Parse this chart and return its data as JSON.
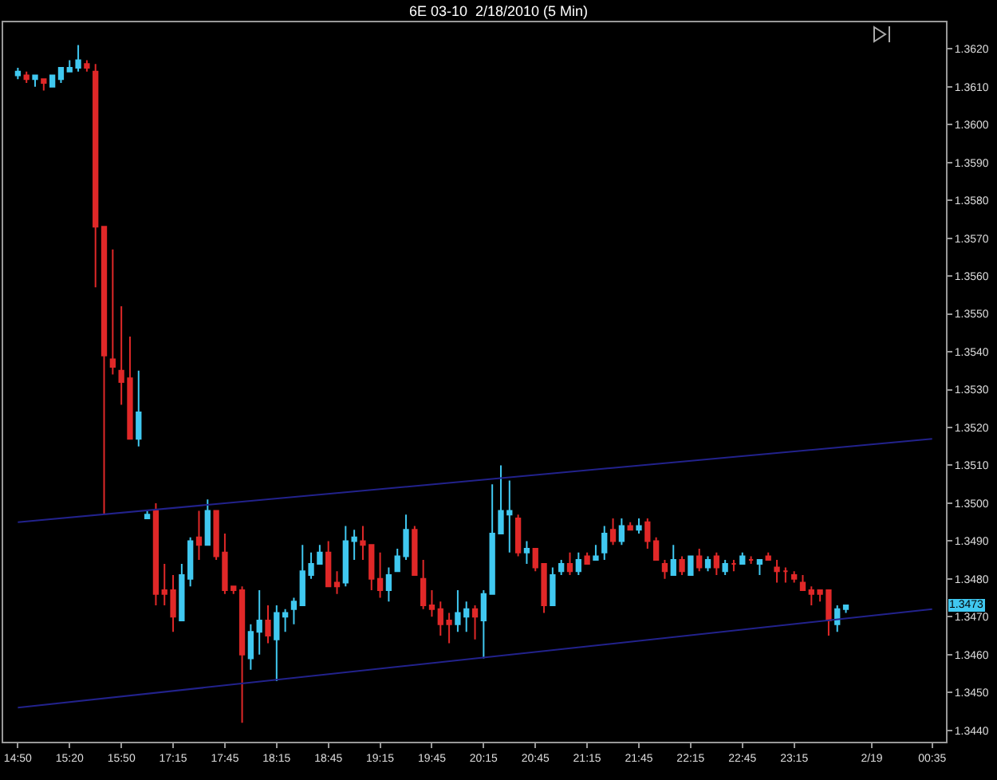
{
  "chart_data": {
    "type": "candlestick",
    "title": "6E 03-10  2/18/2010 (5 Min)",
    "categories": [
      "14:50",
      null,
      null,
      null,
      null,
      null,
      "15:20",
      null,
      null,
      null,
      null,
      null,
      "15:50",
      null,
      null,
      null,
      null,
      null,
      "17:15",
      null,
      null,
      null,
      null,
      null,
      "17:45",
      null,
      null,
      null,
      null,
      null,
      "18:15",
      null,
      null,
      null,
      null,
      null,
      "18:45",
      null,
      null,
      null,
      null,
      null,
      "19:15",
      null,
      null,
      null,
      null,
      null,
      "19:45",
      null,
      null,
      null,
      null,
      null,
      "20:15",
      null,
      null,
      null,
      null,
      null,
      "20:45",
      null,
      null,
      null,
      null,
      null,
      "21:15",
      null,
      null,
      null,
      null,
      null,
      "21:45",
      null,
      null,
      null,
      null,
      null,
      "22:15",
      null,
      null,
      null,
      null,
      null,
      "22:45",
      null,
      null,
      null,
      null,
      null,
      "23:15",
      null,
      null,
      null,
      null,
      null,
      null,
      null,
      null,
      "2/19",
      null,
      null,
      null,
      null,
      null,
      null,
      "00:35"
    ],
    "ohlc": [
      [
        1.3613,
        1.3615,
        1.3612,
        1.3614
      ],
      [
        1.3613,
        1.3614,
        1.3611,
        1.3612
      ],
      [
        1.3612,
        1.3613,
        1.361,
        1.3613
      ],
      [
        1.3612,
        1.3612,
        1.3609,
        1.3611
      ],
      [
        1.361,
        1.3613,
        1.361,
        1.3613
      ],
      [
        1.3612,
        1.3615,
        1.3611,
        1.3615
      ],
      [
        1.3614,
        1.3617,
        1.3614,
        1.3615
      ],
      [
        1.3615,
        1.3621,
        1.3614,
        1.3617
      ],
      [
        1.3616,
        1.3617,
        1.3614,
        1.3615
      ],
      [
        1.3614,
        1.3616,
        1.3557,
        1.3573
      ],
      [
        1.3573,
        1.3573,
        1.3497,
        1.3539
      ],
      [
        1.3538,
        1.3567,
        1.3534,
        1.3536
      ],
      [
        1.3535,
        1.3552,
        1.3526,
        1.3532
      ],
      [
        1.3533,
        1.3544,
        1.3517,
        1.3517
      ],
      [
        1.3517,
        1.3535,
        1.3515,
        1.3524
      ],
      [
        1.3496,
        1.3498,
        1.3496,
        1.3497
      ],
      [
        1.3498,
        1.35,
        1.3473,
        1.3476
      ],
      [
        1.3477,
        1.3484,
        1.3473,
        1.3476
      ],
      [
        1.3477,
        1.3481,
        1.3466,
        1.347
      ],
      [
        1.3469,
        1.3484,
        1.3469,
        1.3481
      ],
      [
        1.348,
        1.3491,
        1.3478,
        1.349
      ],
      [
        1.3491,
        1.3498,
        1.3485,
        1.3489
      ],
      [
        1.3489,
        1.3501,
        1.3489,
        1.3498
      ],
      [
        1.3498,
        1.3498,
        1.3485,
        1.3486
      ],
      [
        1.3487,
        1.3492,
        1.3476,
        1.3477
      ],
      [
        1.3478,
        1.3478,
        1.3476,
        1.3477
      ],
      [
        1.3477,
        1.3478,
        1.3442,
        1.346
      ],
      [
        1.3459,
        1.3468,
        1.3456,
        1.3466
      ],
      [
        1.3466,
        1.3477,
        1.346,
        1.3469
      ],
      [
        1.3469,
        1.3473,
        1.3463,
        1.3465
      ],
      [
        1.3464,
        1.3473,
        1.3453,
        1.3471
      ],
      [
        1.347,
        1.3472,
        1.3466,
        1.3471
      ],
      [
        1.3472,
        1.3475,
        1.3468,
        1.3474
      ],
      [
        1.3473,
        1.3489,
        1.3473,
        1.3482
      ],
      [
        1.3481,
        1.3487,
        1.348,
        1.3484
      ],
      [
        1.3484,
        1.3489,
        1.3484,
        1.3487
      ],
      [
        1.3487,
        1.349,
        1.3478,
        1.3478
      ],
      [
        1.3479,
        1.3482,
        1.3476,
        1.3478
      ],
      [
        1.3479,
        1.3494,
        1.3478,
        1.349
      ],
      [
        1.349,
        1.3493,
        1.3485,
        1.3491
      ],
      [
        1.349,
        1.3494,
        1.3485,
        1.3489
      ],
      [
        1.3489,
        1.3489,
        1.3477,
        1.348
      ],
      [
        1.348,
        1.3487,
        1.3475,
        1.3477
      ],
      [
        1.3477,
        1.3483,
        1.3474,
        1.3481
      ],
      [
        1.3482,
        1.3488,
        1.3482,
        1.3486
      ],
      [
        1.3486,
        1.3497,
        1.3485,
        1.3493
      ],
      [
        1.3493,
        1.3494,
        1.3481,
        1.3481
      ],
      [
        1.348,
        1.3485,
        1.3472,
        1.3473
      ],
      [
        1.3473,
        1.3477,
        1.347,
        1.3472
      ],
      [
        1.3472,
        1.3474,
        1.3465,
        1.3468
      ],
      [
        1.3469,
        1.3471,
        1.3463,
        1.3468
      ],
      [
        1.3468,
        1.3477,
        1.3466,
        1.3471
      ],
      [
        1.347,
        1.3474,
        1.3466,
        1.3472
      ],
      [
        1.3472,
        1.3473,
        1.3464,
        1.347
      ],
      [
        1.3469,
        1.3477,
        1.3459,
        1.3476
      ],
      [
        1.3476,
        1.3505,
        1.3476,
        1.3492
      ],
      [
        1.3492,
        1.351,
        1.3492,
        1.3498
      ],
      [
        1.3497,
        1.3506,
        1.3487,
        1.3498
      ],
      [
        1.3496,
        1.3497,
        1.3486,
        1.3487
      ],
      [
        1.3487,
        1.349,
        1.3484,
        1.3488
      ],
      [
        1.3488,
        1.3488,
        1.3482,
        1.3483
      ],
      [
        1.3484,
        1.3484,
        1.3471,
        1.3473
      ],
      [
        1.3473,
        1.3483,
        1.3473,
        1.3481
      ],
      [
        1.3482,
        1.3485,
        1.3481,
        1.3484
      ],
      [
        1.3484,
        1.3487,
        1.3481,
        1.3482
      ],
      [
        1.3482,
        1.3487,
        1.3481,
        1.3485
      ],
      [
        1.3486,
        1.3487,
        1.3484,
        1.3484
      ],
      [
        1.3485,
        1.3489,
        1.3485,
        1.3486
      ],
      [
        1.3487,
        1.3494,
        1.3485,
        1.3492
      ],
      [
        1.3493,
        1.3496,
        1.3489,
        1.349
      ],
      [
        1.349,
        1.3496,
        1.3489,
        1.3494
      ],
      [
        1.3494,
        1.3495,
        1.3493,
        1.3493
      ],
      [
        1.3493,
        1.3496,
        1.3492,
        1.3494
      ],
      [
        1.3495,
        1.3496,
        1.3488,
        1.349
      ],
      [
        1.349,
        1.3491,
        1.3485,
        1.3485
      ],
      [
        1.3484,
        1.3485,
        1.348,
        1.3482
      ],
      [
        1.3481,
        1.3489,
        1.3481,
        1.3485
      ],
      [
        1.3485,
        1.3486,
        1.3481,
        1.3482
      ],
      [
        1.3481,
        1.3486,
        1.3481,
        1.3486
      ],
      [
        1.3486,
        1.3488,
        1.3482,
        1.3483
      ],
      [
        1.3483,
        1.3486,
        1.3482,
        1.3485
      ],
      [
        1.3486,
        1.3487,
        1.3481,
        1.3483
      ],
      [
        1.3482,
        1.3485,
        1.3481,
        1.3484
      ],
      [
        1.3484,
        1.3485,
        1.3482,
        1.3484
      ],
      [
        1.3484,
        1.3487,
        1.3484,
        1.3486
      ],
      [
        1.3485,
        1.3486,
        1.3484,
        1.3485
      ],
      [
        1.3484,
        1.3485,
        1.3481,
        1.3485
      ],
      [
        1.3486,
        1.3487,
        1.3485,
        1.3485
      ],
      [
        1.3483,
        1.3485,
        1.3479,
        1.3482
      ],
      [
        1.3482,
        1.3483,
        1.3479,
        1.3482
      ],
      [
        1.3481,
        1.3482,
        1.3479,
        1.348
      ],
      [
        1.3479,
        1.3481,
        1.3477,
        1.3477
      ],
      [
        1.3477,
        1.3478,
        1.3473,
        1.3476
      ],
      [
        1.3477,
        1.3477,
        1.3474,
        1.3476
      ],
      [
        1.3477,
        1.3477,
        1.3465,
        1.3469
      ],
      [
        1.3468,
        1.3473,
        1.3466,
        1.3472
      ],
      [
        1.3472,
        1.3473,
        1.3471,
        1.3473
      ],
      null,
      null,
      null,
      null,
      null,
      null,
      null,
      null,
      null,
      null
    ],
    "colors": [
      "#40c8f0",
      "#e02828",
      "#40c8f0",
      "#e02828",
      "#40c8f0",
      "#40c8f0",
      "#40c8f0",
      "#40c8f0",
      "#e02828",
      "#e02828",
      "#e02828",
      "#e02828",
      "#e02828",
      "#e02828",
      "#40c8f0",
      "#40c8f0",
      "#e02828",
      "#e02828",
      "#e02828",
      "#40c8f0",
      "#40c8f0",
      "#e02828",
      "#40c8f0",
      "#e02828",
      "#e02828",
      "#e02828",
      "#e02828",
      "#40c8f0",
      "#40c8f0",
      "#e02828",
      "#40c8f0",
      "#40c8f0",
      "#40c8f0",
      "#40c8f0",
      "#40c8f0",
      "#40c8f0",
      "#e02828",
      "#e02828",
      "#40c8f0",
      "#40c8f0",
      "#e02828",
      "#e02828",
      "#e02828",
      "#40c8f0",
      "#40c8f0",
      "#40c8f0",
      "#e02828",
      "#e02828",
      "#e02828",
      "#e02828",
      "#e02828",
      "#40c8f0",
      "#40c8f0",
      "#e02828",
      "#40c8f0",
      "#40c8f0",
      "#40c8f0",
      "#40c8f0",
      "#e02828",
      "#40c8f0",
      "#e02828",
      "#e02828",
      "#40c8f0",
      "#40c8f0",
      "#e02828",
      "#40c8f0",
      "#e02828",
      "#40c8f0",
      "#40c8f0",
      "#e02828",
      "#40c8f0",
      "#e02828",
      "#40c8f0",
      "#e02828",
      "#e02828",
      "#e02828",
      "#40c8f0",
      "#e02828",
      "#40c8f0",
      "#e02828",
      "#40c8f0",
      "#e02828",
      "#40c8f0",
      "#e02828",
      "#40c8f0",
      "#e02828",
      "#40c8f0",
      "#e02828",
      "#e02828",
      "#e02828",
      "#e02828",
      "#e02828",
      "#e02828",
      "#e02828",
      "#e02828",
      "#40c8f0",
      "#40c8f0",
      null,
      null,
      null,
      null,
      null,
      null,
      null,
      null,
      null,
      null
    ],
    "series": [
      {
        "type": "line",
        "x": [
          "14:50",
          "00:35"
        ],
        "values": [
          1.3495,
          1.3517
        ],
        "color": "#22228c"
      },
      {
        "type": "line",
        "x": [
          "14:50",
          "00:35"
        ],
        "values": [
          1.3446,
          1.3472
        ],
        "color": "#22228c"
      }
    ],
    "ylim": [
      1.3437,
      1.3627
    ],
    "yticks": [
      {
        "value": 1.344,
        "label": "1.3440"
      },
      {
        "value": 1.345,
        "label": "1.3450"
      },
      {
        "value": 1.346,
        "label": "1.3460"
      },
      {
        "value": 1.347,
        "label": "1.3470"
      },
      {
        "value": 1.348,
        "label": "1.3480"
      },
      {
        "value": 1.349,
        "label": "1.3490"
      },
      {
        "value": 1.35,
        "label": "1.3500"
      },
      {
        "value": 1.351,
        "label": "1.3510"
      },
      {
        "value": 1.352,
        "label": "1.3520"
      },
      {
        "value": 1.353,
        "label": "1.3530"
      },
      {
        "value": 1.354,
        "label": "1.3540"
      },
      {
        "value": 1.355,
        "label": "1.3550"
      },
      {
        "value": 1.356,
        "label": "1.3560"
      },
      {
        "value": 1.357,
        "label": "1.3570"
      },
      {
        "value": 1.358,
        "label": "1.3580"
      },
      {
        "value": 1.359,
        "label": "1.3590"
      },
      {
        "value": 1.36,
        "label": "1.3600"
      },
      {
        "value": 1.361,
        "label": "1.3610"
      },
      {
        "value": 1.362,
        "label": "1.3620"
      }
    ],
    "annotations": [
      {
        "text": "1.3473",
        "y": 1.3473
      }
    ],
    "grid": false
  }
}
